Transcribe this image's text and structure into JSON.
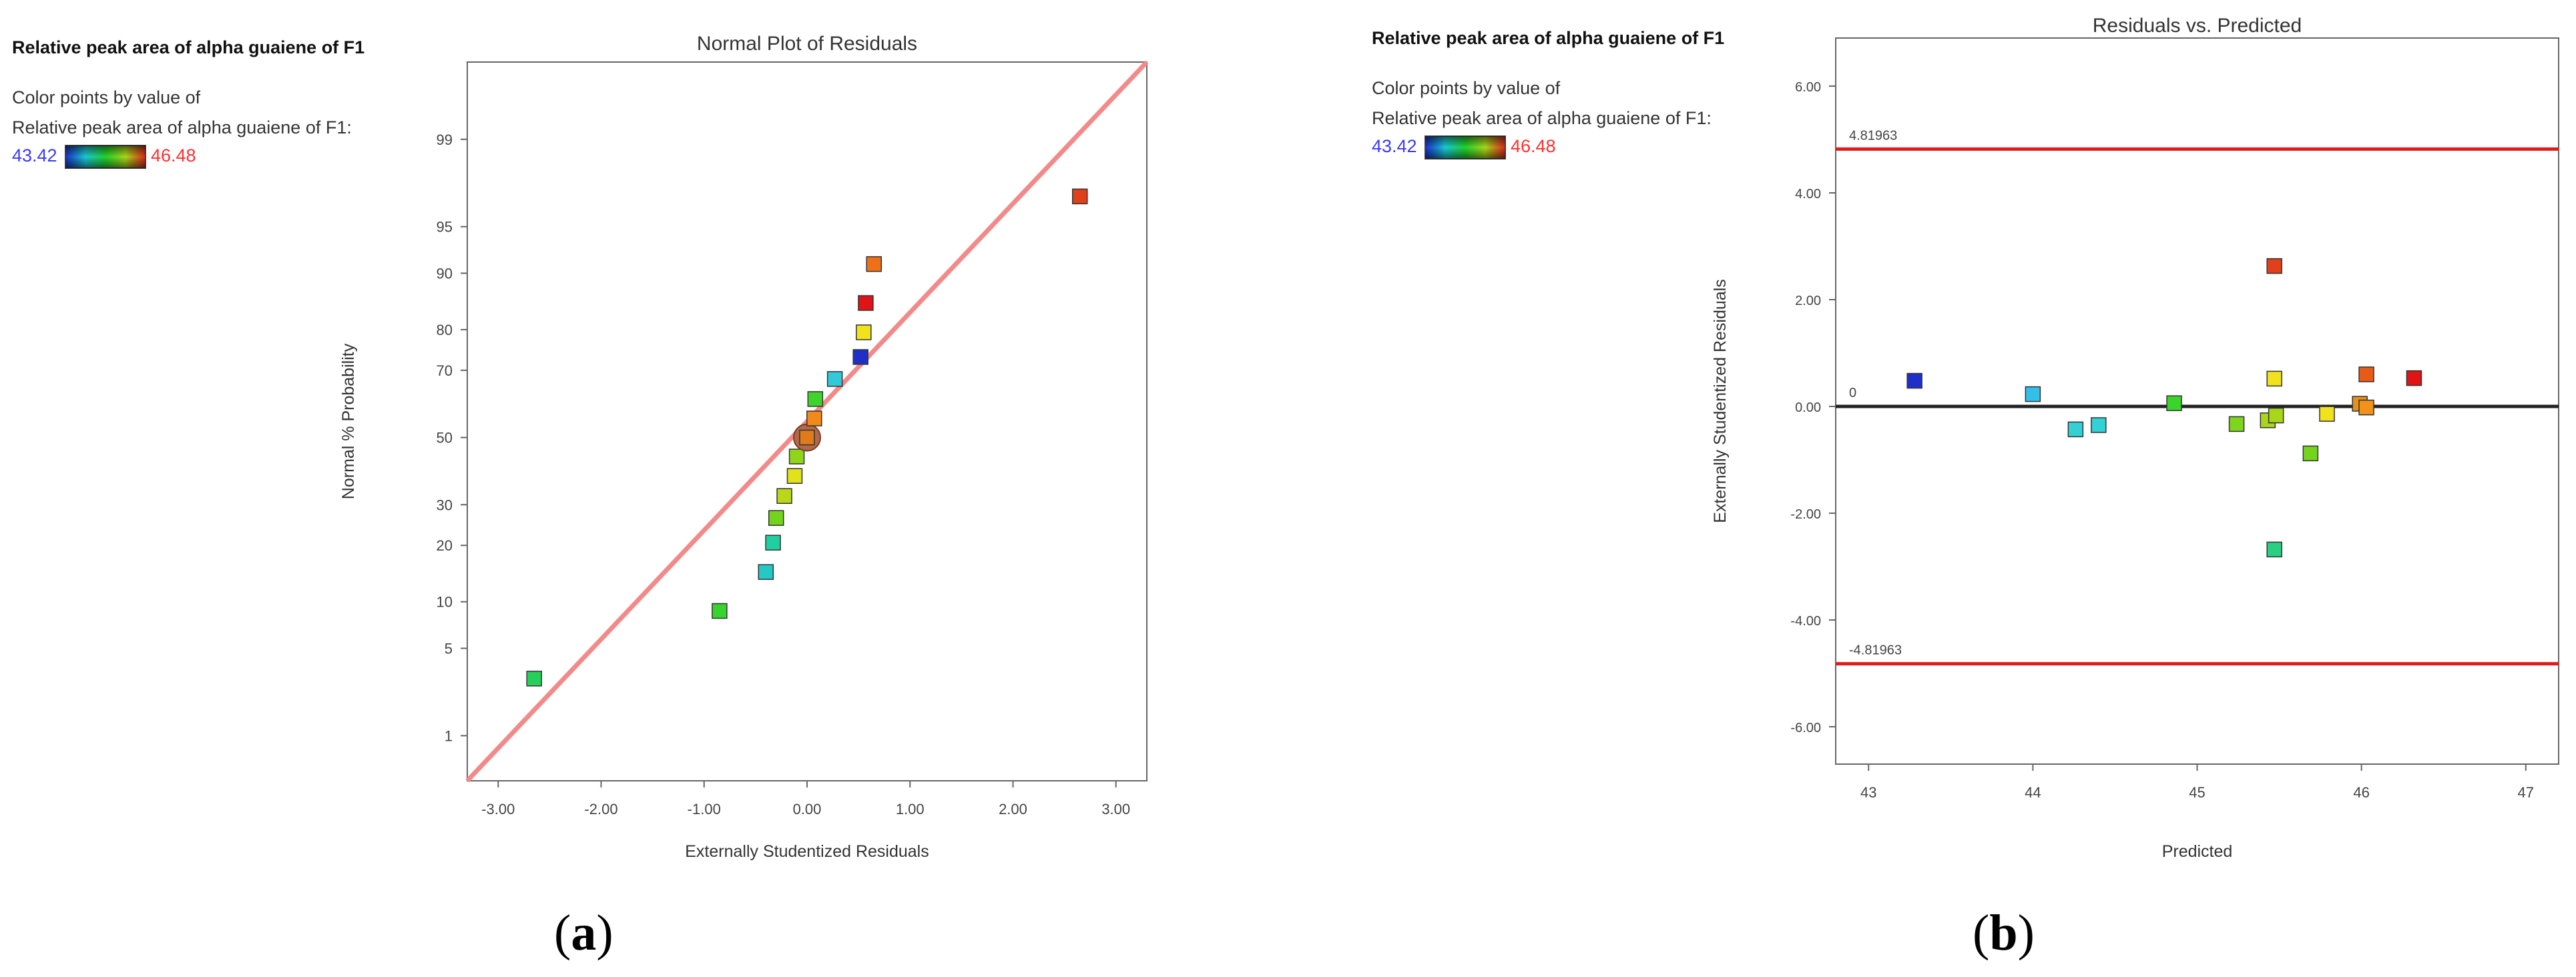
{
  "chart_data": [
    {
      "type": "scatter",
      "panel": "(a)",
      "panel_letter": "a",
      "title": "Normal Plot of Residuals",
      "xlabel": "Externally Studentized Residuals",
      "ylabel": "Normal % Probability",
      "side_title": "Relative peak area of alpha guaiene of F1",
      "color_caption_line1": "Color points by value of",
      "color_caption_line2": "Relative peak area of alpha guaiene of F1:",
      "color_min": "43.42",
      "color_max": "46.48",
      "xlim": [
        -3.3,
        3.3
      ],
      "xticks": [
        -3,
        -2,
        -1,
        0,
        1,
        2,
        3
      ],
      "xtick_labels": [
        "-3.00",
        "-2.00",
        "-1.00",
        "0.00",
        "1.00",
        "2.00",
        "3.00"
      ],
      "yticks": [
        1,
        5,
        10,
        20,
        30,
        50,
        70,
        80,
        90,
        95,
        99
      ],
      "ytick_labels": [
        "1",
        "5",
        "10",
        "20",
        "30",
        "50",
        "70",
        "80",
        "90",
        "95",
        "99"
      ],
      "ref_line": {
        "x1": -3.3,
        "y1": 0.37,
        "x2": 3.3,
        "y2": 99.83
      },
      "points": [
        {
          "x": -2.65,
          "y": 3.0,
          "color": "#27cf5b"
        },
        {
          "x": -0.85,
          "y": 8.8,
          "color": "#37d42f"
        },
        {
          "x": -0.4,
          "y": 14.7,
          "color": "#22c9c6"
        },
        {
          "x": -0.33,
          "y": 20.6,
          "color": "#1fcfa0"
        },
        {
          "x": -0.3,
          "y": 26.5,
          "color": "#74d41c"
        },
        {
          "x": -0.22,
          "y": 32.4,
          "color": "#bcd61a"
        },
        {
          "x": -0.12,
          "y": 38.2,
          "color": "#e2e21a"
        },
        {
          "x": -0.1,
          "y": 44.1,
          "color": "#8fd61a"
        },
        {
          "x": 0.0,
          "y": 50.0,
          "color": "#e07a1a",
          "highlight": true
        },
        {
          "x": 0.07,
          "y": 55.9,
          "color": "#f08a1a"
        },
        {
          "x": 0.08,
          "y": 61.8,
          "color": "#3fd42b"
        },
        {
          "x": 0.27,
          "y": 67.6,
          "color": "#33c9d9"
        },
        {
          "x": 0.52,
          "y": 73.5,
          "color": "#1f30c8"
        },
        {
          "x": 0.55,
          "y": 79.4,
          "color": "#f2e21c"
        },
        {
          "x": 0.57,
          "y": 85.3,
          "color": "#e01414"
        },
        {
          "x": 0.65,
          "y": 91.2,
          "color": "#f07018"
        },
        {
          "x": 2.65,
          "y": 97.0,
          "color": "#e0401a"
        }
      ]
    },
    {
      "type": "scatter",
      "panel": "(b)",
      "panel_letter": "b",
      "title": "Residuals vs. Predicted",
      "xlabel": "Predicted",
      "ylabel": "Externally Studentized Residuals",
      "side_title": "Relative peak area of alpha guaiene of F1",
      "color_caption_line1": "Color points by value of",
      "color_caption_line2": "Relative peak area of alpha guaiene of F1:",
      "color_min": "43.42",
      "color_max": "46.48",
      "xlim": [
        42.8,
        47.2
      ],
      "ylim": [
        -6.7,
        6.9
      ],
      "xticks": [
        43,
        44,
        45,
        46,
        47
      ],
      "xtick_labels": [
        "43",
        "44",
        "45",
        "46",
        "47"
      ],
      "yticks": [
        -6,
        -4,
        -2,
        0,
        2,
        4,
        6
      ],
      "ytick_labels": [
        "-6.00",
        "-4.00",
        "-2.00",
        "0.00",
        "2.00",
        "4.00",
        "6.00"
      ],
      "upper_limit": 4.81963,
      "lower_limit": -4.81963,
      "upper_limit_label": "4.81963",
      "lower_limit_label": "-4.81963",
      "zero_label": "0",
      "points": [
        {
          "x": 43.28,
          "y": 0.48,
          "color": "#1f30c8"
        },
        {
          "x": 44.0,
          "y": 0.23,
          "color": "#33c0e8"
        },
        {
          "x": 44.26,
          "y": -0.43,
          "color": "#33d0d6"
        },
        {
          "x": 44.4,
          "y": -0.35,
          "color": "#33d0d6"
        },
        {
          "x": 44.86,
          "y": 0.06,
          "color": "#3ad42a"
        },
        {
          "x": 45.24,
          "y": -0.33,
          "color": "#7ed61c"
        },
        {
          "x": 45.43,
          "y": -0.26,
          "color": "#a9d61a"
        },
        {
          "x": 45.47,
          "y": 2.63,
          "color": "#e0401a"
        },
        {
          "x": 45.47,
          "y": 0.52,
          "color": "#f2e21c"
        },
        {
          "x": 45.48,
          "y": -0.17,
          "color": "#a9d61a"
        },
        {
          "x": 45.47,
          "y": -2.68,
          "color": "#2acf83"
        },
        {
          "x": 45.69,
          "y": -0.88,
          "color": "#74d41c"
        },
        {
          "x": 45.79,
          "y": -0.14,
          "color": "#f2e21c"
        },
        {
          "x": 45.99,
          "y": 0.05,
          "color": "#e6911a"
        },
        {
          "x": 46.03,
          "y": -0.02,
          "color": "#f0921c"
        },
        {
          "x": 46.03,
          "y": 0.6,
          "color": "#e85a18"
        },
        {
          "x": 46.32,
          "y": 0.53,
          "color": "#e01414"
        }
      ]
    }
  ]
}
